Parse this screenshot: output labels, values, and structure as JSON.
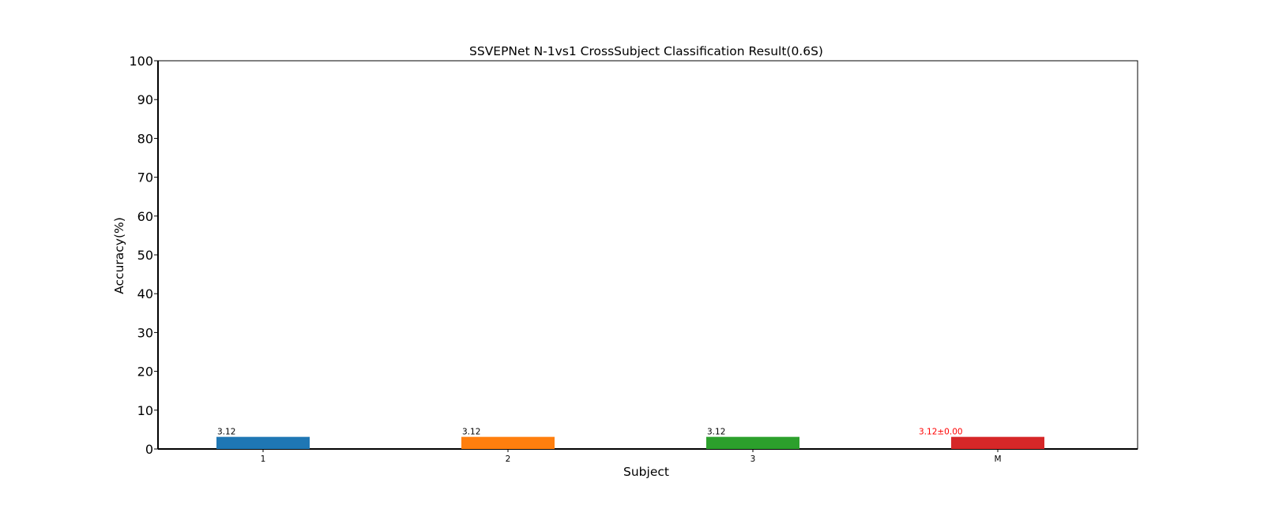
{
  "chart_data": {
    "type": "bar",
    "title": "SSVEPNet N-1vs1 CrossSubject Classification Result(0.6S)",
    "xlabel": "Subject",
    "ylabel": "Accuracy(%)",
    "ylim": [
      0,
      100
    ],
    "yticks": [
      "0",
      "10",
      "20",
      "30",
      "40",
      "50",
      "60",
      "70",
      "80",
      "90",
      "100"
    ],
    "categories": [
      "1",
      "2",
      "3",
      "M"
    ],
    "values": [
      3.12,
      3.12,
      3.12,
      3.12
    ],
    "data_labels": [
      "3.12",
      "3.12",
      "3.12",
      "3.12±0.00"
    ],
    "colors": [
      "#1f77b4",
      "#ff7f0e",
      "#2ca02c",
      "#d62728"
    ],
    "label_colors": [
      "#000000",
      "#000000",
      "#000000",
      "#ff0000"
    ],
    "grid": false,
    "legend": "none"
  }
}
